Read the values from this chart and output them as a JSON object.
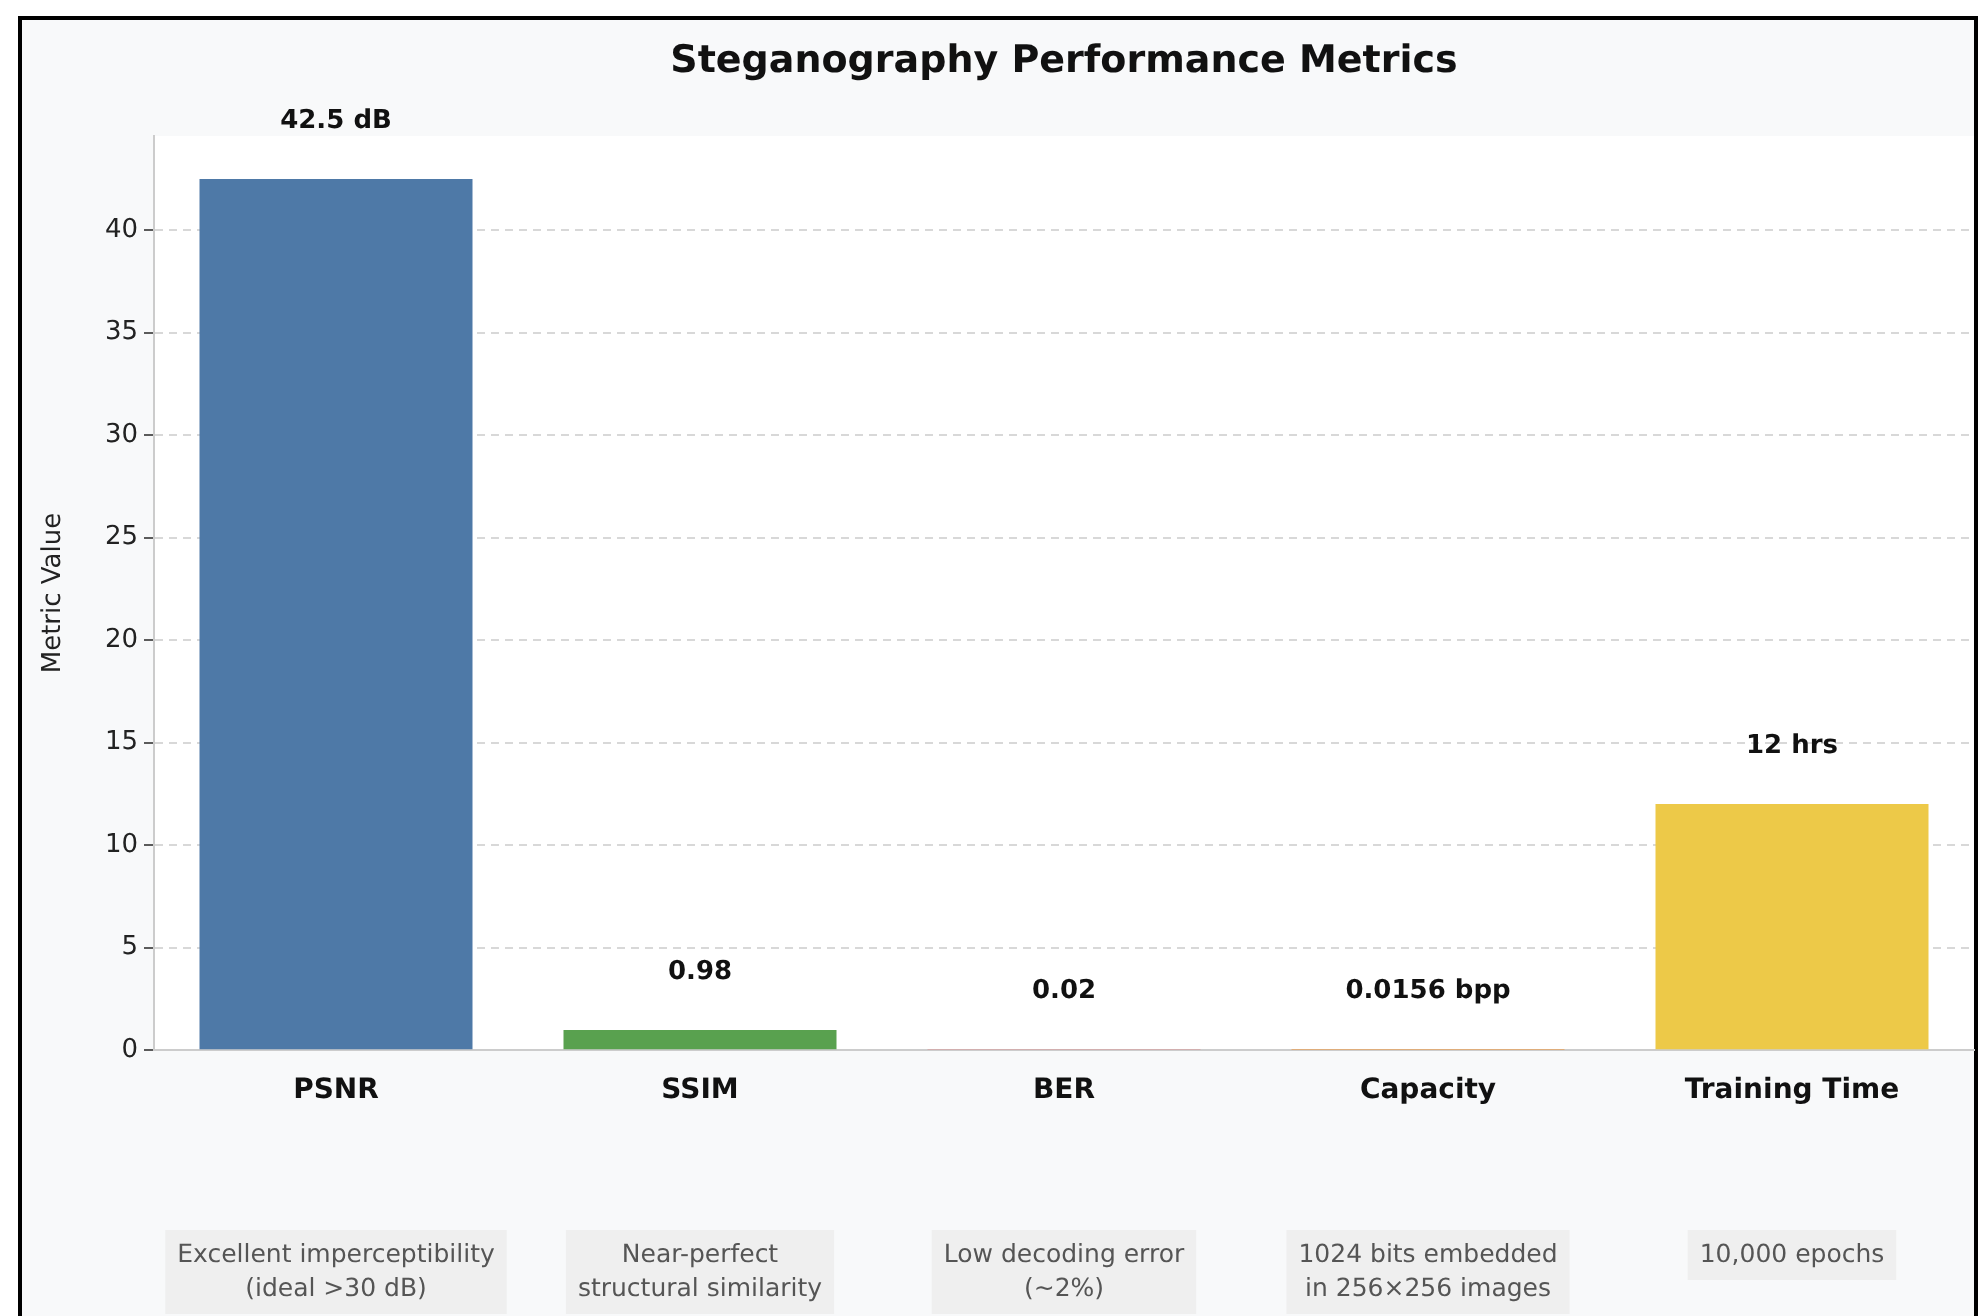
{
  "chart_data": {
    "type": "bar",
    "title": "Steganography Performance Metrics",
    "ylabel": "Metric Value",
    "categories": [
      "PSNR",
      "SSIM",
      "BER",
      "Capacity",
      "Training Time"
    ],
    "values": [
      42.5,
      0.98,
      0.02,
      0.0156,
      12
    ],
    "colors": [
      "#4e79a7",
      "#59a14f",
      "#e15759",
      "#f28e2b",
      "#edc948"
    ],
    "value_labels": [
      "42.5 dB",
      "0.98",
      "0.02",
      "0.0156 bpp",
      "12 hrs"
    ],
    "ylim": [
      0,
      44.6
    ],
    "yticks": [
      0,
      5,
      10,
      15,
      20,
      25,
      30,
      35,
      40
    ],
    "grid": "y",
    "annotations": [
      "Excellent imperceptibility\n(ideal >30 dB)",
      "Near-perfect\nstructural similarity",
      "Low decoding error\n(~2%)",
      "1024 bits embedded\nin 256×256 images",
      "10,000 epochs"
    ]
  }
}
